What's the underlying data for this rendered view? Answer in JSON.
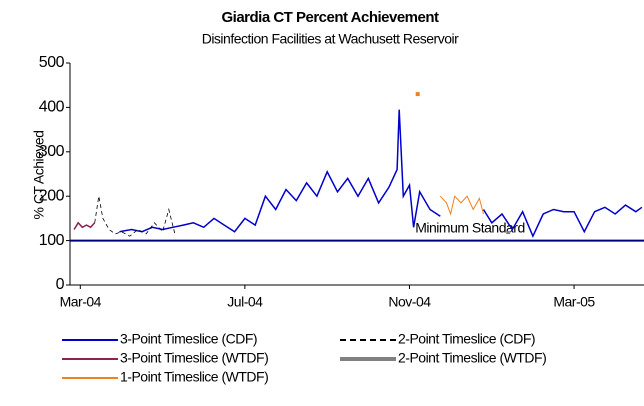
{
  "chart_data": {
    "type": "line",
    "title": "Giardia CT Percent Achievement",
    "subtitle": "Disinfection Facilities at Wachusett Reservoir",
    "y_label": "% CT Achieved",
    "xlim": [
      -0.25,
      13.7
    ],
    "xticks": [
      {
        "value": 0,
        "label": "Mar-04"
      },
      {
        "value": 4,
        "label": "Jul-04"
      },
      {
        "value": 8,
        "label": "Nov-04"
      },
      {
        "value": 12,
        "label": "Mar-05"
      }
    ],
    "ylim": [
      0,
      500
    ],
    "yticks": [
      0,
      100,
      200,
      300,
      400,
      500
    ],
    "reference_line": {
      "value": 100,
      "label": "Minimum Standard",
      "color": "#000080"
    },
    "series": [
      {
        "name": "3-Point Timeslice (CDF)",
        "color": "#0000cc",
        "width": 1.5,
        "dash": false,
        "x": [
          0.95,
          1.25,
          1.5,
          1.75,
          2.0,
          2.25,
          2.5,
          2.75,
          3.0,
          3.25,
          3.5,
          3.75,
          4.0,
          4.25,
          4.5,
          4.75,
          5.0,
          5.25,
          5.5,
          5.75,
          6.0,
          6.25,
          6.5,
          6.75,
          7.0,
          7.25,
          7.5,
          7.7,
          7.75,
          7.85,
          8.0,
          8.1,
          8.25,
          8.5,
          8.75,
          9.2,
          9.8,
          10.0,
          10.25,
          10.5,
          10.75,
          11.0,
          11.25,
          11.5,
          11.75,
          12.0,
          12.25,
          12.5,
          12.75,
          13.0,
          13.25,
          13.5,
          13.65
        ],
        "values": [
          120,
          125,
          120,
          130,
          125,
          130,
          135,
          140,
          130,
          150,
          135,
          120,
          150,
          135,
          200,
          170,
          215,
          190,
          230,
          200,
          255,
          210,
          240,
          200,
          240,
          185,
          220,
          260,
          395,
          200,
          225,
          130,
          210,
          170,
          155,
          null,
          170,
          140,
          160,
          125,
          165,
          110,
          160,
          170,
          165,
          165,
          120,
          165,
          175,
          160,
          180,
          165,
          175
        ]
      },
      {
        "name": "2-Point Timeslice (CDF)",
        "color": "#000000",
        "width": 0.8,
        "dash": true,
        "legend_dash": true,
        "x": [
          0.35,
          0.45,
          0.55,
          0.7,
          0.85,
          1.0,
          1.2,
          1.4,
          1.6,
          1.8,
          2.0,
          2.15,
          2.3
        ],
        "values": [
          140,
          200,
          150,
          125,
          115,
          120,
          110,
          125,
          115,
          140,
          120,
          170,
          115
        ]
      },
      {
        "name": "3-Point Timeslice (WTDF)",
        "color": "#8b2252",
        "width": 1.5,
        "dash": false,
        "x": [
          -0.15,
          -0.05,
          0.05,
          0.15,
          0.25,
          0.35
        ],
        "values": [
          125,
          140,
          130,
          135,
          130,
          140
        ]
      },
      {
        "name": "2-Point Timeslice (WTDF)",
        "color": "#808080",
        "width": 3,
        "dash": false,
        "x": [
          10.35,
          10.45
        ],
        "values": [
          118,
          118
        ]
      },
      {
        "name": "1-Point Timeslice (WTDF)",
        "color": "#f08020",
        "width": 1,
        "dash": false,
        "x": [
          8.75,
          8.9,
          9.0,
          9.1,
          9.25,
          9.4,
          9.55,
          9.7,
          9.8
        ],
        "values": [
          200,
          185,
          160,
          200,
          185,
          200,
          170,
          195,
          160
        ]
      }
    ],
    "markers": [
      {
        "x": 8.2,
        "value": 430,
        "color": "#f08020"
      }
    ]
  }
}
